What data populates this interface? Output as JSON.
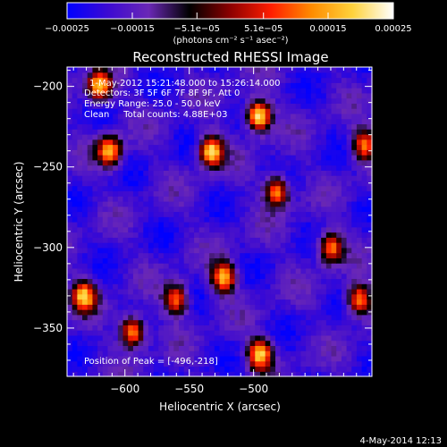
{
  "chart_data": {
    "type": "heatmap",
    "title": "Reconstructed RHESSI Image",
    "xlabel": "Heliocentric X (arcsec)",
    "ylabel": "Heliocentric Y (arcsec)",
    "xlim": [
      -645,
      -408
    ],
    "ylim": [
      -380,
      -188
    ],
    "x_ticks": [
      -600,
      -550,
      -500
    ],
    "x_tick_labels": [
      "−600",
      "−550",
      "−500"
    ],
    "y_ticks": [
      -350,
      -300,
      -250,
      -200
    ],
    "y_tick_labels": [
      "−350",
      "−300",
      "−250",
      "−200"
    ],
    "colorbar": {
      "range": [
        -0.00025,
        0.00025
      ],
      "ticks": [
        -0.00025,
        -0.00015,
        -5.1e-05,
        5.1e-05,
        0.00015,
        0.00025
      ],
      "tick_labels": [
        "−0.00025",
        "−0.00015",
        "−5.1e−05",
        "5.1e−05",
        "0.00015",
        "0.00025"
      ],
      "unit_label": "(photons cm⁻² s⁻¹ asec⁻²)",
      "colors": [
        "#0000ff",
        "#3c0ad2",
        "#6a28b6",
        "#000000",
        "#8c0000",
        "#ff1e00",
        "#ff8c00",
        "#ffd23c",
        "#ffffff"
      ]
    },
    "annotations": [
      "1-May-2012 15:21:48.000 to 15:26:14.000",
      "Detectors: 3F 5F 6F 7F 8F 9F, Att 0",
      "Energy Range: 25.0 - 50.0 keV",
      "Clean     Total counts: 4.88E+03"
    ],
    "peak_label": "Position of Peak = [-496,-218]",
    "peak": [
      -496,
      -218
    ],
    "timestamp": "4-May-2014 12:13",
    "sources": [
      {
        "x": -496,
        "y": -218,
        "v": 0.00025
      },
      {
        "x": -533,
        "y": -240,
        "v": 0.00021
      },
      {
        "x": -620,
        "y": -200,
        "v": 0.00019
      },
      {
        "x": -612,
        "y": -240,
        "v": 0.00016
      },
      {
        "x": -632,
        "y": -330,
        "v": 0.00017
      },
      {
        "x": -594,
        "y": -352,
        "v": 0.00016
      },
      {
        "x": -560,
        "y": -332,
        "v": 0.00012
      },
      {
        "x": -523,
        "y": -318,
        "v": 0.00017
      },
      {
        "x": -495,
        "y": -366,
        "v": 0.00018
      },
      {
        "x": -482,
        "y": -265,
        "v": 0.00014
      },
      {
        "x": -440,
        "y": -300,
        "v": 0.00012
      },
      {
        "x": -414,
        "y": -236,
        "v": 0.00011
      },
      {
        "x": -418,
        "y": -332,
        "v": 0.00014
      }
    ]
  }
}
